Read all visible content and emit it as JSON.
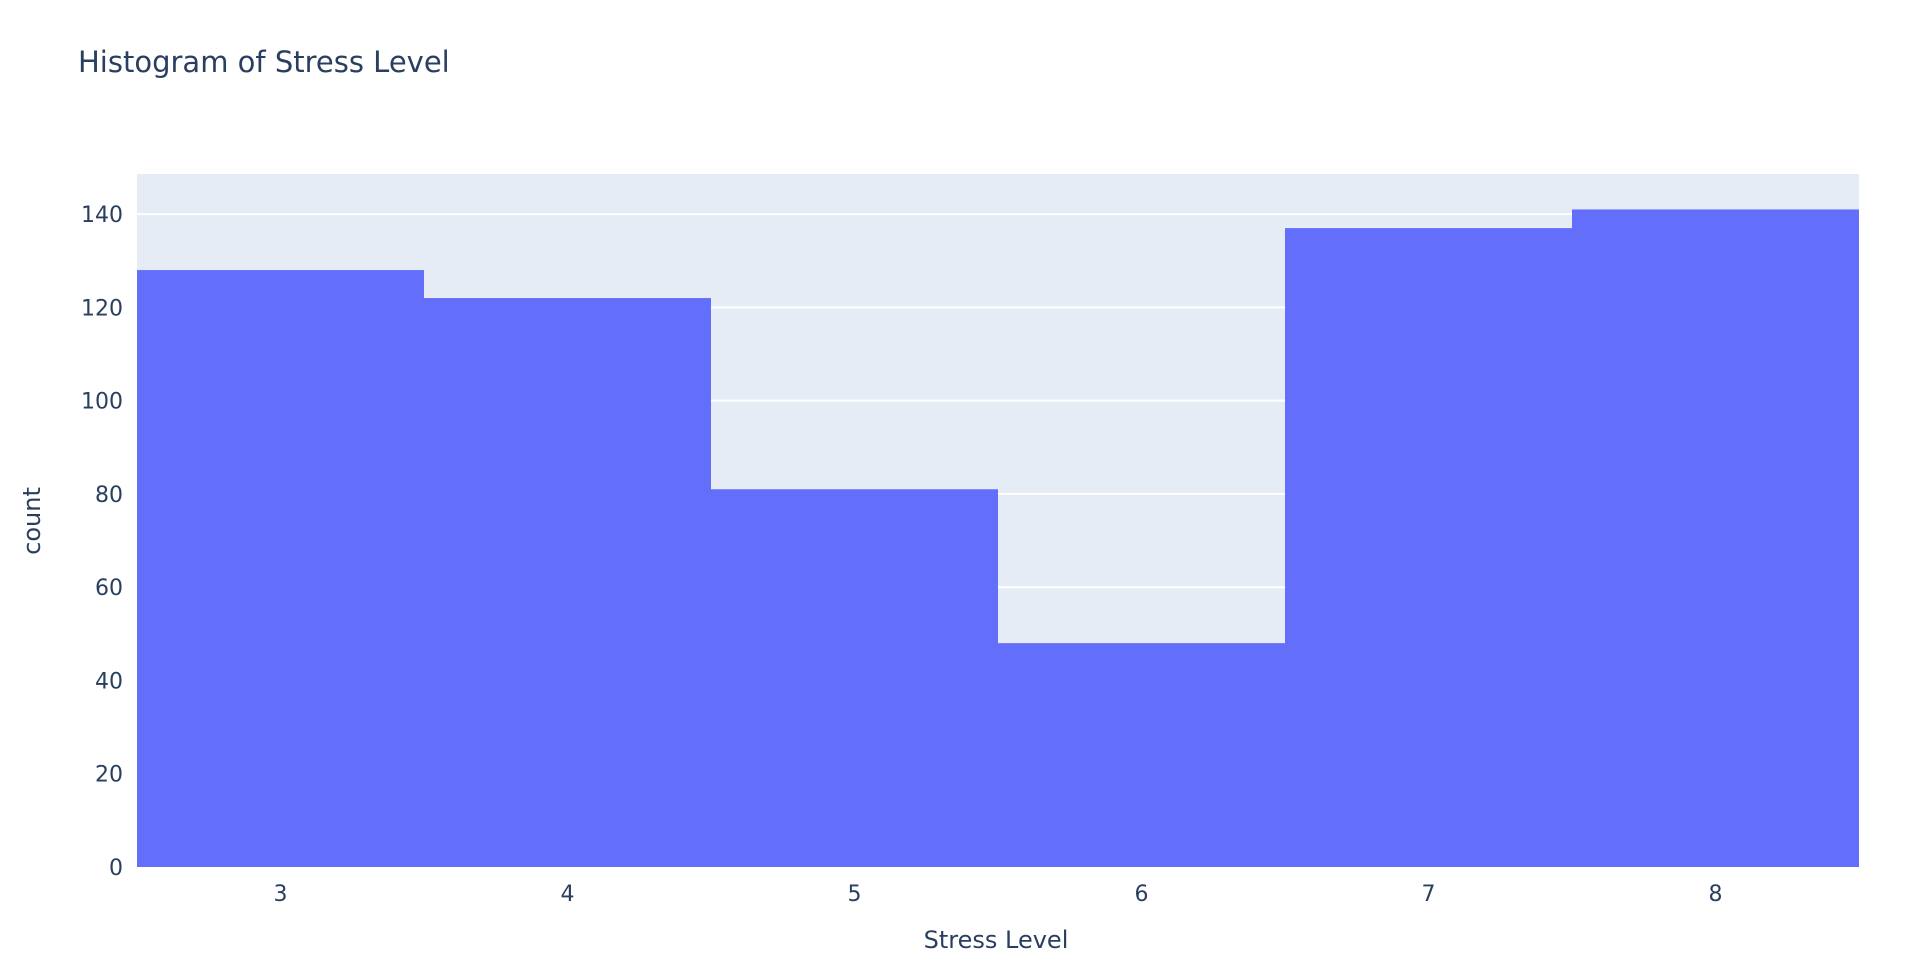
{
  "chart_data": {
    "type": "bar",
    "title": "Histogram of Stress Level",
    "xlabel": "Stress Level",
    "ylabel": "count",
    "categories": [
      "3",
      "4",
      "5",
      "6",
      "7",
      "8"
    ],
    "values": [
      128,
      122,
      81,
      48,
      137,
      141
    ],
    "ylim": [
      0,
      148.6
    ],
    "y_ticks": [
      0,
      20,
      40,
      60,
      80,
      100,
      120,
      140
    ],
    "grid": true,
    "bar_color": "#636efa",
    "plot_bg": "#e5ecf6",
    "text_color": "#2a3f5f"
  }
}
